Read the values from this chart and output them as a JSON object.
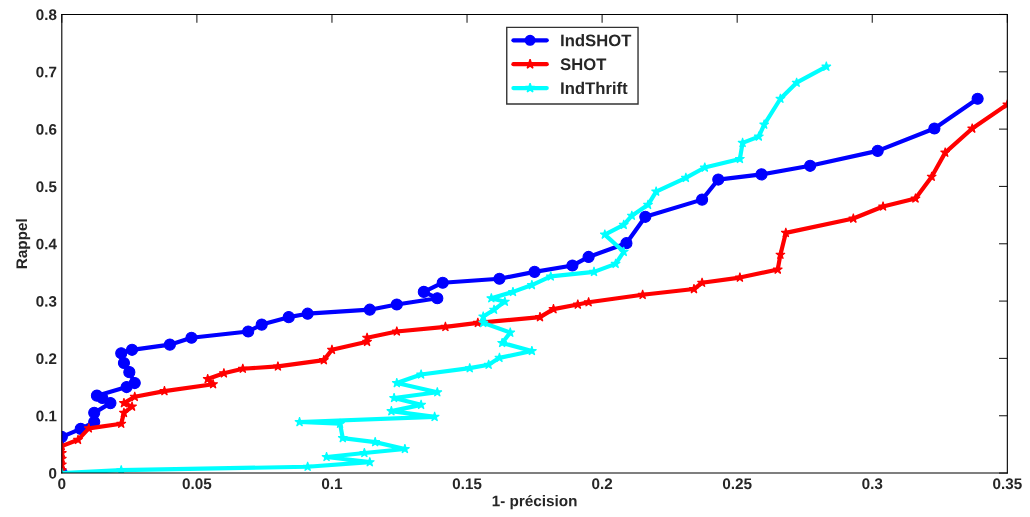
{
  "chart_data": {
    "type": "line",
    "xlabel": "1- précision",
    "ylabel": "Rappel",
    "xlim": [
      0,
      0.35
    ],
    "ylim": [
      0,
      0.8
    ],
    "xticks": [
      0,
      0.05,
      0.1,
      0.15,
      0.2,
      0.25,
      0.3,
      0.35
    ],
    "yticks": [
      0,
      0.1,
      0.2,
      0.3,
      0.4,
      0.5,
      0.6,
      0.7,
      0.8
    ],
    "grid": false,
    "legend": "top",
    "line_style": "solid",
    "series": [
      {
        "name": "IndSHOT",
        "color": "#0000ff",
        "marker": "circle",
        "x": [
          0,
          0,
          0.007,
          0.012,
          0.012,
          0.018,
          0.015,
          0.013,
          0.024,
          0.027,
          0.025,
          0.023,
          0.022,
          0.026,
          0.04,
          0.048,
          0.069,
          0.074,
          0.084,
          0.091,
          0.114,
          0.124,
          0.139,
          0.134,
          0.141,
          0.162,
          0.175,
          0.189,
          0.195,
          0.209,
          0.216,
          0.237,
          0.243,
          0.259,
          0.277,
          0.302,
          0.323,
          0.339
        ],
        "values": [
          0,
          0.063,
          0.077,
          0.089,
          0.105,
          0.122,
          0.131,
          0.135,
          0.15,
          0.157,
          0.176,
          0.192,
          0.209,
          0.215,
          0.224,
          0.236,
          0.247,
          0.259,
          0.272,
          0.278,
          0.285,
          0.294,
          0.305,
          0.316,
          0.332,
          0.339,
          0.351,
          0.362,
          0.377,
          0.401,
          0.447,
          0.477,
          0.512,
          0.521,
          0.536,
          0.562,
          0.601,
          0.653
        ]
      },
      {
        "name": "SHOT",
        "color": "#ff0000",
        "marker": "star",
        "x": [
          0,
          0,
          0,
          0,
          0,
          0,
          0.006,
          0.01,
          0.022,
          0.023,
          0.026,
          0.023,
          0.027,
          0.038,
          0.056,
          0.054,
          0.06,
          0.067,
          0.08,
          0.097,
          0.1,
          0.113,
          0.113,
          0.124,
          0.142,
          0.154,
          0.177,
          0.182,
          0.191,
          0.195,
          0.215,
          0.234,
          0.237,
          0.251,
          0.265,
          0.266,
          0.268,
          0.293,
          0.304,
          0.316,
          0.322,
          0.327,
          0.337,
          0.35
        ],
        "values": [
          0,
          0.005,
          0.015,
          0.025,
          0.035,
          0.047,
          0.058,
          0.078,
          0.086,
          0.105,
          0.116,
          0.122,
          0.133,
          0.143,
          0.155,
          0.164,
          0.174,
          0.182,
          0.186,
          0.197,
          0.215,
          0.229,
          0.236,
          0.247,
          0.255,
          0.262,
          0.272,
          0.286,
          0.294,
          0.298,
          0.311,
          0.321,
          0.332,
          0.341,
          0.355,
          0.381,
          0.419,
          0.444,
          0.465,
          0.479,
          0.517,
          0.559,
          0.601,
          0.643
        ]
      },
      {
        "name": "IndThrift",
        "color": "#00ffff",
        "marker": "star",
        "x": [
          0,
          0.022,
          0.091,
          0.114,
          0.098,
          0.112,
          0.127,
          0.116,
          0.104,
          0.103,
          0.088,
          0.138,
          0.122,
          0.133,
          0.123,
          0.139,
          0.124,
          0.133,
          0.151,
          0.158,
          0.162,
          0.174,
          0.163,
          0.166,
          0.156,
          0.156,
          0.16,
          0.164,
          0.159,
          0.167,
          0.174,
          0.181,
          0.197,
          0.205,
          0.208,
          0.201,
          0.208,
          0.211,
          0.217,
          0.22,
          0.231,
          0.238,
          0.251,
          0.252,
          0.258,
          0.26,
          0.266,
          0.272,
          0.283
        ],
        "values": [
          0,
          0.005,
          0.011,
          0.019,
          0.028,
          0.035,
          0.042,
          0.054,
          0.061,
          0.086,
          0.089,
          0.098,
          0.108,
          0.119,
          0.131,
          0.141,
          0.157,
          0.172,
          0.183,
          0.189,
          0.201,
          0.213,
          0.227,
          0.245,
          0.262,
          0.273,
          0.285,
          0.299,
          0.305,
          0.316,
          0.328,
          0.343,
          0.351,
          0.365,
          0.386,
          0.416,
          0.433,
          0.449,
          0.468,
          0.491,
          0.515,
          0.533,
          0.548,
          0.576,
          0.587,
          0.608,
          0.653,
          0.681,
          0.709
        ]
      }
    ]
  }
}
